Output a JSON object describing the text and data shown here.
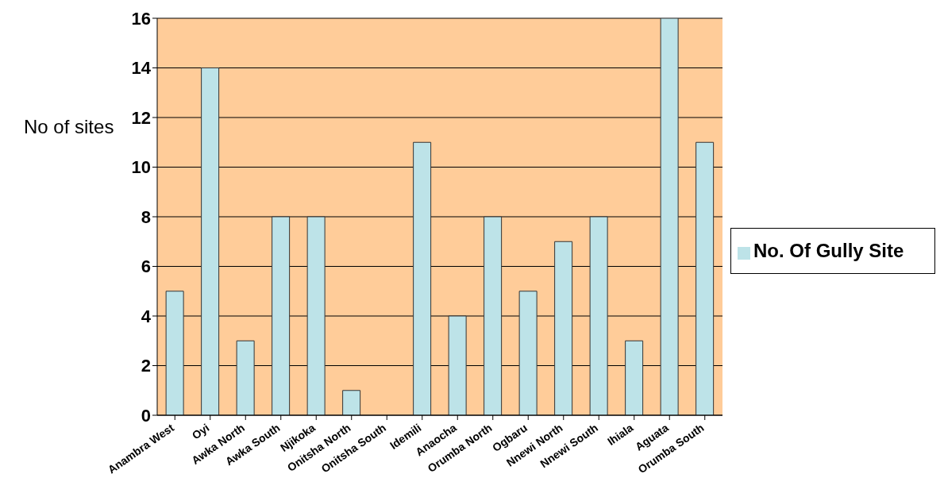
{
  "chart_data": {
    "type": "bar",
    "ylabel": "No of sites",
    "categories": [
      "Anambra West",
      "Oyi",
      "Awka North",
      "Awka South",
      "Njikoka",
      "Onitsha North",
      "Onitsha South",
      "Idemili",
      "Anaocha",
      "Orumba North",
      "Ogbaru",
      "Nnewi North",
      "Nnewi South",
      "Ihiala",
      "Aguata",
      "Orumba South"
    ],
    "series": [
      {
        "name": "No. Of Gully Site",
        "color": "#bde3e8",
        "values": [
          5,
          14,
          3,
          8,
          8,
          1,
          0,
          11,
          4,
          8,
          5,
          7,
          8,
          3,
          16,
          11
        ]
      }
    ],
    "ylim": [
      0,
      16
    ],
    "yticks": [
      0,
      2,
      4,
      6,
      8,
      10,
      12,
      14,
      16
    ],
    "grid": "y",
    "legend": "right"
  }
}
